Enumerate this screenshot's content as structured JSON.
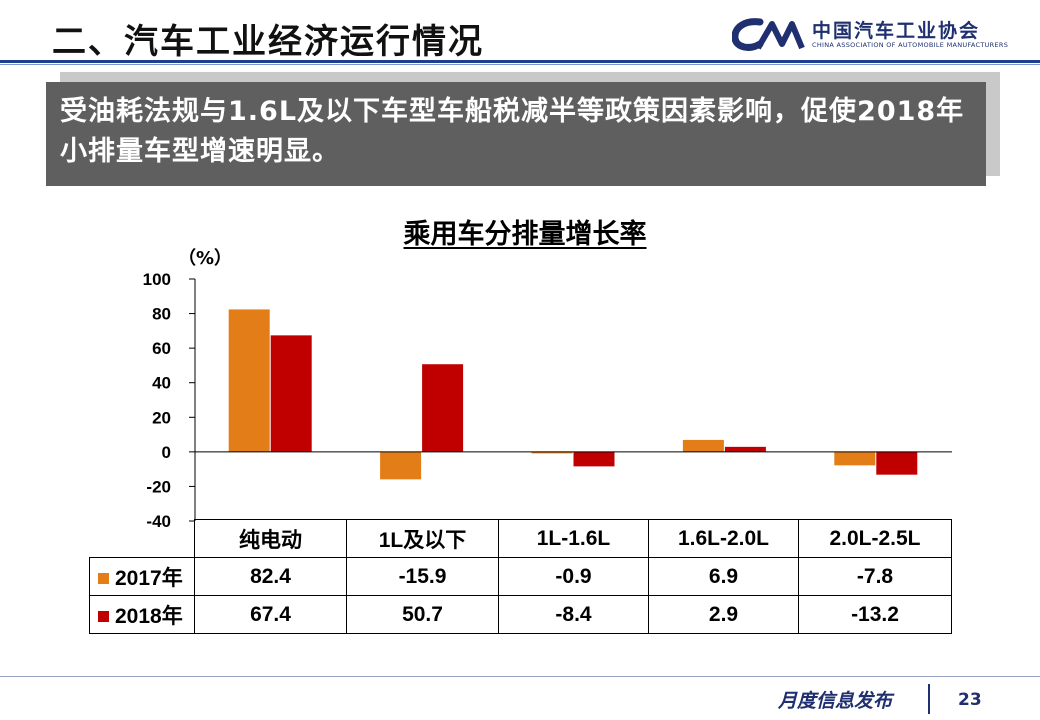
{
  "header": {
    "title": "二、汽车工业经济运行情况",
    "logo_cn": "中国汽车工业协会",
    "logo_en": "CHINA ASSOCIATION OF AUTOMOBILE MANUFACTURERS"
  },
  "banner": {
    "text": "受油耗法规与1.6L及以下车型车船税减半等政策因素影响，促使2018年小排量车型增速明显。"
  },
  "colors": {
    "series_2017": "#e37d17",
    "series_2018": "#c00000",
    "title_blue": "#1f3f8f"
  },
  "chart_data": {
    "type": "bar",
    "title": "乘用车分排量增长率",
    "ylabel": "（%）",
    "categories": [
      "纯电动",
      "1L及以下",
      "1L-1.6L",
      "1.6L-2.0L",
      "2.0L-2.5L"
    ],
    "series": [
      {
        "name": "2017年",
        "values": [
          82.4,
          -15.9,
          -0.9,
          6.9,
          -7.8
        ]
      },
      {
        "name": "2018年",
        "values": [
          67.4,
          50.7,
          -8.4,
          2.9,
          -13.2
        ]
      }
    ],
    "ylim": [
      -40,
      100
    ],
    "yticks": [
      100,
      80,
      60,
      40,
      20,
      0,
      -20,
      -40
    ],
    "table": {
      "rows": [
        {
          "label": "2017年",
          "cells": [
            "82.4",
            "-15.9",
            "-0.9",
            "6.9",
            "-7.8"
          ]
        },
        {
          "label": "2018年",
          "cells": [
            "67.4",
            "50.7",
            "-8.4",
            "2.9",
            "-13.2"
          ]
        }
      ]
    }
  },
  "footer": {
    "text": "月度信息发布",
    "page": "23"
  }
}
